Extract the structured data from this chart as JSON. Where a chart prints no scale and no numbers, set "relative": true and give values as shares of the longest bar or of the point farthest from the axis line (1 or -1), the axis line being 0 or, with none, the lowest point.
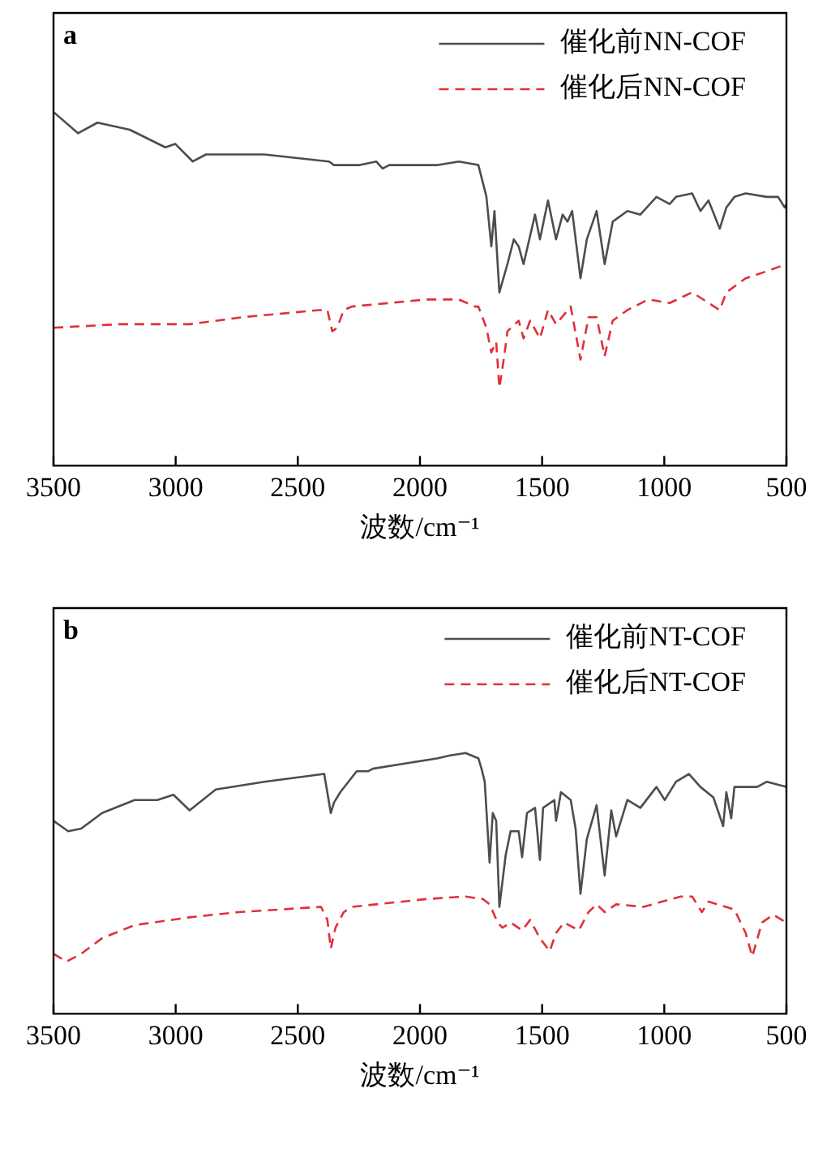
{
  "chart_data": [
    {
      "type": "line",
      "title": "a",
      "xlabel": "波数/cm⁻¹",
      "relative": true,
      "xlim": [
        3500,
        500
      ],
      "xticks": [
        3500,
        3000,
        2500,
        2000,
        1500,
        1000,
        500
      ],
      "legend": "top right",
      "grid": false,
      "marker": "none",
      "series": [
        {
          "name": "催化前NN-COF",
          "color": "#4d4d4d",
          "line_style": "solid",
          "x": [
            3500,
            3400,
            3320,
            3188,
            3042,
            3002,
            2930,
            2876,
            2790,
            2637,
            2372,
            2352,
            2312,
            2246,
            2179,
            2153,
            2126,
            1927,
            1841,
            1761,
            1735,
            1728,
            1708,
            1695,
            1675,
            1642,
            1616,
            1596,
            1576,
            1529,
            1509,
            1476,
            1443,
            1416,
            1396,
            1377,
            1343,
            1317,
            1277,
            1244,
            1211,
            1151,
            1098,
            1032,
            978,
            952,
            886,
            852,
            819,
            773,
            746,
            713,
            667,
            580,
            534,
            507,
            500
          ],
          "values": [
            1.0,
            0.94,
            0.97,
            0.95,
            0.9,
            0.91,
            0.86,
            0.88,
            0.88,
            0.88,
            0.86,
            0.85,
            0.85,
            0.85,
            0.86,
            0.84,
            0.85,
            0.85,
            0.86,
            0.85,
            0.78,
            0.76,
            0.62,
            0.72,
            0.49,
            0.57,
            0.64,
            0.62,
            0.57,
            0.71,
            0.64,
            0.75,
            0.64,
            0.71,
            0.69,
            0.72,
            0.53,
            0.64,
            0.72,
            0.57,
            0.69,
            0.72,
            0.71,
            0.76,
            0.74,
            0.76,
            0.77,
            0.72,
            0.75,
            0.67,
            0.73,
            0.76,
            0.77,
            0.76,
            0.76,
            0.73,
            0.74
          ]
        },
        {
          "name": "催化后NN-COF",
          "color": "#e0303a",
          "line_style": "dashed",
          "x": [
            3500,
            3235,
            2943,
            2724,
            2412,
            2379,
            2359,
            2339,
            2312,
            2279,
            1974,
            1841,
            1775,
            1761,
            1728,
            1708,
            1688,
            1675,
            1655,
            1642,
            1596,
            1576,
            1549,
            1509,
            1476,
            1443,
            1383,
            1343,
            1310,
            1277,
            1244,
            1211,
            1151,
            1065,
            978,
            886,
            773,
            746,
            667,
            580,
            500
          ],
          "values": [
            0.39,
            0.4,
            0.4,
            0.42,
            0.44,
            0.44,
            0.38,
            0.39,
            0.44,
            0.45,
            0.47,
            0.47,
            0.45,
            0.45,
            0.39,
            0.32,
            0.35,
            0.22,
            0.31,
            0.38,
            0.41,
            0.36,
            0.41,
            0.36,
            0.44,
            0.4,
            0.45,
            0.3,
            0.42,
            0.42,
            0.31,
            0.41,
            0.44,
            0.47,
            0.46,
            0.49,
            0.44,
            0.49,
            0.53,
            0.55,
            0.57
          ]
        }
      ]
    },
    {
      "type": "line",
      "title": "b",
      "xlabel": "波数/cm⁻¹",
      "relative": true,
      "xlim": [
        3500,
        500
      ],
      "xticks": [
        3500,
        3000,
        2500,
        2000,
        1500,
        1000,
        500
      ],
      "legend": "top right",
      "grid": false,
      "marker": "none",
      "series": [
        {
          "name": "催化前NT-COF",
          "color": "#4d4d4d",
          "line_style": "solid",
          "x": [
            3500,
            3440,
            3387,
            3301,
            3168,
            3075,
            3009,
            2943,
            2890,
            2836,
            2637,
            2392,
            2365,
            2352,
            2326,
            2259,
            2213,
            2193,
            1927,
            1881,
            1814,
            1761,
            1748,
            1735,
            1715,
            1702,
            1688,
            1675,
            1649,
            1629,
            1596,
            1582,
            1562,
            1529,
            1509,
            1496,
            1450,
            1443,
            1423,
            1383,
            1363,
            1343,
            1317,
            1277,
            1244,
            1217,
            1197,
            1151,
            1098,
            1032,
            998,
            952,
            899,
            852,
            799,
            759,
            746,
            726,
            713,
            620,
            580,
            500
          ],
          "values": [
            0.74,
            0.7,
            0.71,
            0.77,
            0.82,
            0.82,
            0.84,
            0.78,
            0.82,
            0.86,
            0.89,
            0.92,
            0.77,
            0.81,
            0.85,
            0.93,
            0.93,
            0.94,
            0.98,
            0.99,
            1.0,
            0.98,
            0.94,
            0.89,
            0.58,
            0.77,
            0.74,
            0.41,
            0.61,
            0.7,
            0.7,
            0.6,
            0.77,
            0.79,
            0.59,
            0.79,
            0.82,
            0.74,
            0.85,
            0.82,
            0.71,
            0.46,
            0.67,
            0.8,
            0.53,
            0.78,
            0.68,
            0.82,
            0.79,
            0.87,
            0.82,
            0.89,
            0.92,
            0.87,
            0.83,
            0.72,
            0.85,
            0.75,
            0.87,
            0.87,
            0.89,
            0.87
          ]
        },
        {
          "name": "催化后NT-COF",
          "color": "#e0303a",
          "line_style": "dashed",
          "x": [
            3500,
            3447,
            3387,
            3301,
            3168,
            2943,
            2744,
            2405,
            2379,
            2365,
            2346,
            2312,
            2279,
            1974,
            1814,
            1742,
            1715,
            1682,
            1662,
            1629,
            1582,
            1549,
            1509,
            1469,
            1443,
            1410,
            1350,
            1310,
            1277,
            1244,
            1197,
            1085,
            932,
            886,
            846,
            819,
            713,
            667,
            640,
            600,
            554,
            500
          ],
          "values": [
            0.23,
            0.2,
            0.23,
            0.29,
            0.34,
            0.37,
            0.39,
            0.41,
            0.36,
            0.25,
            0.33,
            0.39,
            0.41,
            0.44,
            0.45,
            0.44,
            0.42,
            0.35,
            0.33,
            0.35,
            0.32,
            0.36,
            0.29,
            0.24,
            0.31,
            0.35,
            0.32,
            0.39,
            0.42,
            0.39,
            0.42,
            0.41,
            0.45,
            0.45,
            0.39,
            0.43,
            0.4,
            0.31,
            0.22,
            0.35,
            0.38,
            0.35
          ]
        }
      ]
    }
  ]
}
